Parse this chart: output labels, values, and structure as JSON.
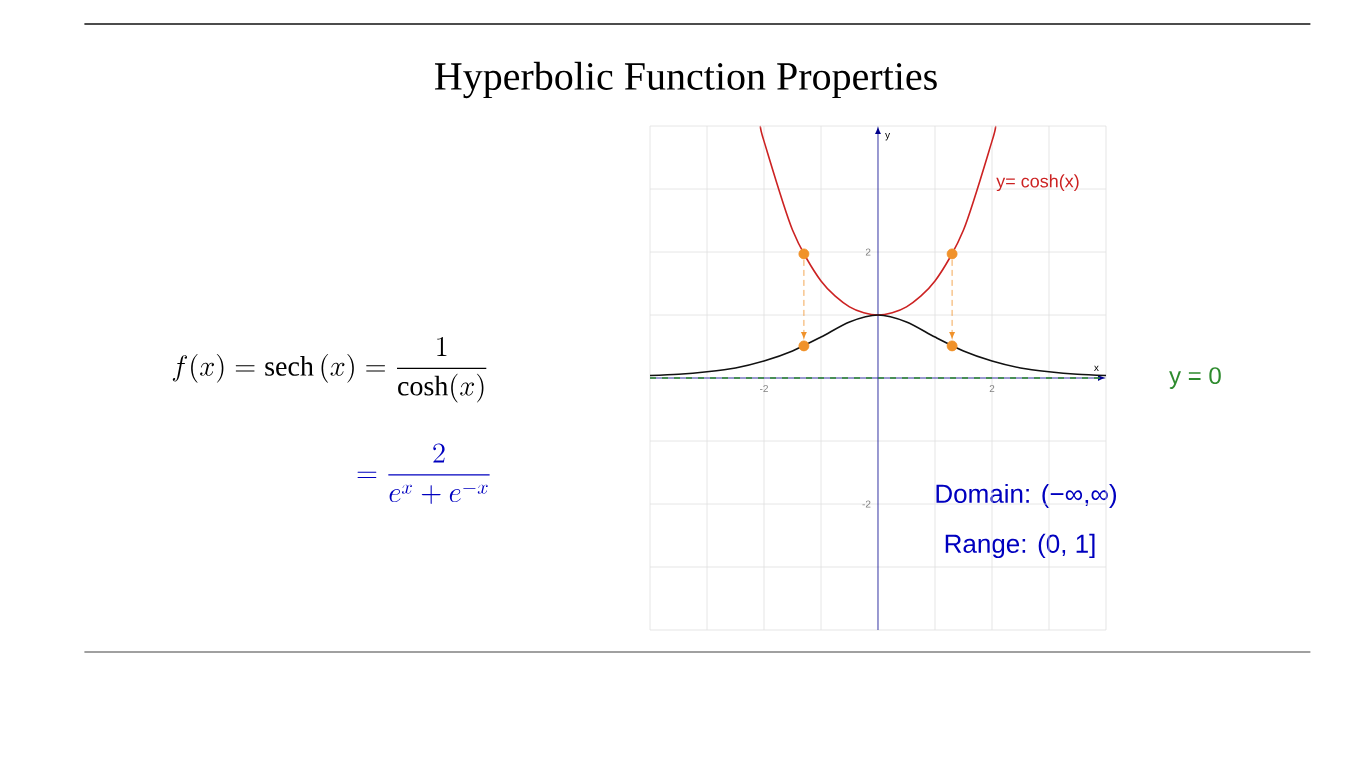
{
  "chart_data": {
    "type": "line",
    "title": "Hyperbolic Function Properties",
    "xlabel": "x",
    "ylabel": "y",
    "xlim": [
      -4,
      4
    ],
    "ylim": [
      -4,
      4
    ],
    "xticks": [
      {
        "value": -4,
        "label": null
      },
      {
        "value": -3,
        "label": null
      },
      -2,
      {
        "value": -1,
        "label": null
      },
      {
        "value": 0,
        "label": null
      },
      {
        "value": 1,
        "label": null
      },
      2,
      {
        "value": 3,
        "label": null
      },
      {
        "value": 4,
        "label": null
      }
    ],
    "yticks": [
      {
        "value": -4,
        "label": null
      },
      {
        "value": -3,
        "label": null
      },
      -2,
      {
        "value": -1,
        "label": null
      },
      {
        "value": 0,
        "label": null
      },
      {
        "value": 1,
        "label": null
      },
      2,
      {
        "value": 3,
        "label": null
      },
      {
        "value": 4,
        "label": null
      }
    ],
    "grid": true,
    "series": [
      {
        "name": "y= cosh(x)",
        "color": "#cc2222",
        "x": [
          -2.06,
          -2,
          -1.5,
          -1,
          -0.5,
          0,
          0.5,
          1,
          1.5,
          2,
          2.06
        ],
        "values": [
          3.99,
          3.76,
          2.35,
          1.54,
          1.13,
          1,
          1.13,
          1.54,
          2.35,
          3.76,
          3.99
        ]
      },
      {
        "color": "#111111",
        "x": [
          -4,
          -3.5,
          -3,
          -2.5,
          -2,
          -1.5,
          -1,
          -0.5,
          0,
          0.5,
          1,
          1.5,
          2,
          2.5,
          3,
          3.5,
          4
        ],
        "values": [
          0.04,
          0.06,
          0.1,
          0.16,
          0.27,
          0.43,
          0.65,
          0.89,
          1,
          0.89,
          0.65,
          0.43,
          0.27,
          0.16,
          0.1,
          0.06,
          0.04
        ]
      },
      {
        "type": "scatter",
        "color": "#f0922b",
        "marker": "circle",
        "x": [
          -1.3,
          -1.3,
          1.3,
          1.3
        ],
        "values": [
          1.97,
          0.51,
          1.97,
          0.51
        ]
      }
    ],
    "ref_lines": [
      {
        "axis": "y",
        "value": 0,
        "label": "y = 0",
        "color": "#2e8b2e",
        "line_style": "dashed"
      }
    ],
    "annotations": [
      "f(x)=\\operatorname{sech}\\left(x\\right)=\\frac{1}{\\cosh(x)}",
      "=\\frac{2}{e^{x}+e^{-x}}",
      "Domain: (−∞,∞)",
      "Range: (0, 1]"
    ]
  }
}
